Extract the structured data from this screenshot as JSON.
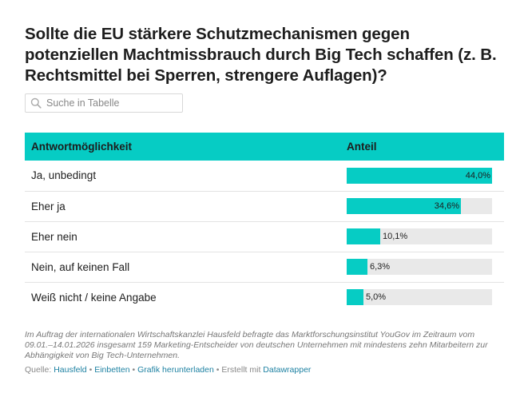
{
  "header": {
    "title": "Sollte die EU stärkere Schutzmechanismen gegen potenziellen Machtmissbrauch durch Big Tech schaffen (z. B. Rechtsmittel bei Sperren, strengere Auflagen)?"
  },
  "search": {
    "placeholder": "Suche in Tabelle"
  },
  "table": {
    "columns": [
      "Antwortmöglichkeit",
      "Anteil"
    ],
    "rows": [
      {
        "label": "Ja, unbedingt",
        "value": 44.0,
        "display": "44,0%"
      },
      {
        "label": "Eher ja",
        "value": 34.6,
        "display": "34,6%"
      },
      {
        "label": "Eher nein",
        "value": 10.1,
        "display": "10,1%"
      },
      {
        "label": "Nein, auf keinen Fall",
        "value": 6.3,
        "display": "6,3%"
      },
      {
        "label": "Weiß nicht / keine Angabe",
        "value": 5.0,
        "display": "5,0%"
      }
    ],
    "max_value": 44.0
  },
  "footer": {
    "notes": "Im Auftrag der internationalen Wirtschaftskanzlei Hausfeld befragte das Marktforschungsinstitut YouGov im Zeitraum vom 09.01.–14.01.2026 insgesamt 159 Marketing-Entscheider von deutschen Unternehmen mit mindestens zehn Mitarbeitern zur Abhängigkeit von Big Tech-Unternehmen.",
    "source_prefix": "Quelle:",
    "source_link": "Hausfeld",
    "embed_link": "Einbetten",
    "download_link": "Grafik herunterladen",
    "created_prefix": "Erstellt mit",
    "created_link": "Datawrapper"
  },
  "colors": {
    "accent": "#06ccc4",
    "track": "#e9e9e9",
    "link": "#1d81a2"
  }
}
